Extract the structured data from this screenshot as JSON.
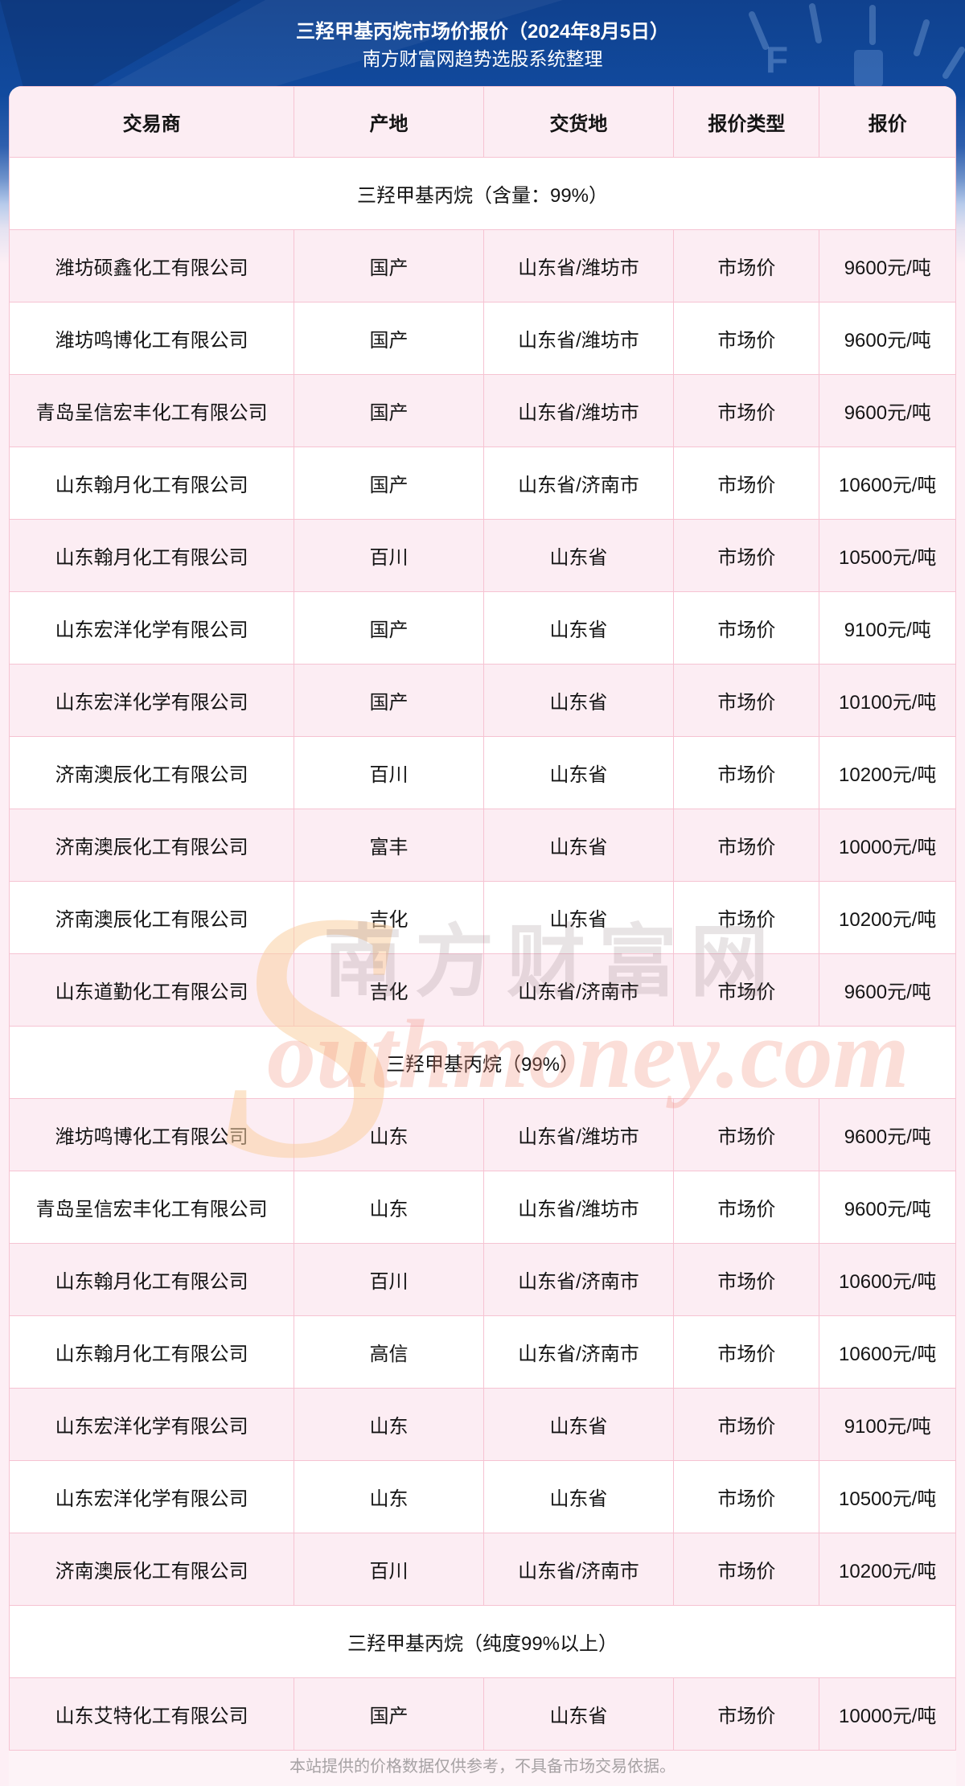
{
  "page": {
    "title_line1": "三羟甲基丙烷市场价报价（2024年8月5日）",
    "title_line2": "南方财富网趋势选股系统整理"
  },
  "table": {
    "columns": [
      "交易商",
      "产地",
      "交货地",
      "报价类型",
      "报价"
    ],
    "sections": [
      {
        "title": "三羟甲基丙烷（含量：99%）",
        "rows": [
          [
            "潍坊硕鑫化工有限公司",
            "国产",
            "山东省/潍坊市",
            "市场价",
            "9600元/吨"
          ],
          [
            "潍坊鸣博化工有限公司",
            "国产",
            "山东省/潍坊市",
            "市场价",
            "9600元/吨"
          ],
          [
            "青岛呈信宏丰化工有限公司",
            "国产",
            "山东省/潍坊市",
            "市场价",
            "9600元/吨"
          ],
          [
            "山东翰月化工有限公司",
            "国产",
            "山东省/济南市",
            "市场价",
            "10600元/吨"
          ],
          [
            "山东翰月化工有限公司",
            "百川",
            "山东省",
            "市场价",
            "10500元/吨"
          ],
          [
            "山东宏洋化学有限公司",
            "国产",
            "山东省",
            "市场价",
            "9100元/吨"
          ],
          [
            "山东宏洋化学有限公司",
            "国产",
            "山东省",
            "市场价",
            "10100元/吨"
          ],
          [
            "济南澳辰化工有限公司",
            "百川",
            "山东省",
            "市场价",
            "10200元/吨"
          ],
          [
            "济南澳辰化工有限公司",
            "富丰",
            "山东省",
            "市场价",
            "10000元/吨"
          ],
          [
            "济南澳辰化工有限公司",
            "吉化",
            "山东省",
            "市场价",
            "10200元/吨"
          ],
          [
            "山东道勤化工有限公司",
            "吉化",
            "山东省/济南市",
            "市场价",
            "9600元/吨"
          ]
        ]
      },
      {
        "title": "三羟甲基丙烷（99%）",
        "rows": [
          [
            "潍坊鸣博化工有限公司",
            "山东",
            "山东省/潍坊市",
            "市场价",
            "9600元/吨"
          ],
          [
            "青岛呈信宏丰化工有限公司",
            "山东",
            "山东省/潍坊市",
            "市场价",
            "9600元/吨"
          ],
          [
            "山东翰月化工有限公司",
            "百川",
            "山东省/济南市",
            "市场价",
            "10600元/吨"
          ],
          [
            "山东翰月化工有限公司",
            "高信",
            "山东省/济南市",
            "市场价",
            "10600元/吨"
          ],
          [
            "山东宏洋化学有限公司",
            "山东",
            "山东省",
            "市场价",
            "9100元/吨"
          ],
          [
            "山东宏洋化学有限公司",
            "山东",
            "山东省",
            "市场价",
            "10500元/吨"
          ],
          [
            "济南澳辰化工有限公司",
            "百川",
            "山东省/济南市",
            "市场价",
            "10200元/吨"
          ]
        ]
      },
      {
        "title": "三羟甲基丙烷（纯度99%以上）",
        "rows": [
          [
            "山东艾特化工有限公司",
            "国产",
            "山东省",
            "市场价",
            "10000元/吨"
          ]
        ]
      }
    ]
  },
  "watermark": {
    "big_s": "S",
    "line1": "南方财富网",
    "line2": "outhmoney.com"
  },
  "footer": {
    "disclaimer": "本站提供的价格数据仅供参考，不具备市场交易依据。"
  },
  "colors": {
    "banner_blue": "#11418f",
    "row_pink": "#fcedf3",
    "row_white": "#ffffff",
    "border_pink": "#f6c3d2",
    "text_dark": "#141414",
    "footer_text": "#a6a2a4",
    "watermark_orange": "#fad0a2"
  }
}
